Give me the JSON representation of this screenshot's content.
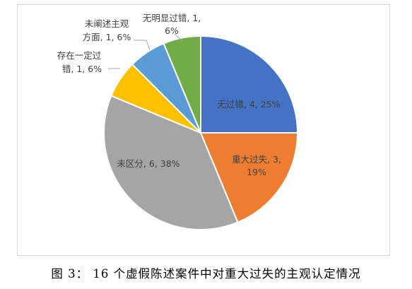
{
  "chart_data": {
    "type": "pie",
    "slices": [
      {
        "label": "无过错, 4, 25%",
        "category": "无过错",
        "value": 4,
        "percent": 25,
        "color": "#4472C4"
      },
      {
        "label_lines": [
          "重大过失, 3,",
          "19%"
        ],
        "category": "重大过失",
        "value": 3,
        "percent": 19,
        "color": "#ED7D31"
      },
      {
        "label": "未区分, 6, 38%",
        "category": "未区分",
        "value": 6,
        "percent": 38,
        "color": "#A5A5A5"
      },
      {
        "label_lines": [
          "存在一定过",
          "错, 1, 6%"
        ],
        "category": "存在一定过错",
        "value": 1,
        "percent": 6,
        "color": "#FFC000"
      },
      {
        "label_lines": [
          "未阐述主观",
          "方面, 1, 6%"
        ],
        "category": "未阐述主观方面",
        "value": 1,
        "percent": 6,
        "color": "#5B9BD5"
      },
      {
        "label_lines": [
          "无明显过错, 1,",
          "6%"
        ],
        "category": "无明显过错",
        "value": 1,
        "percent": 6,
        "color": "#70AD47"
      }
    ]
  },
  "caption": "图 3：  16 个虚假陈述案件中对重大过失的主观认定情况"
}
